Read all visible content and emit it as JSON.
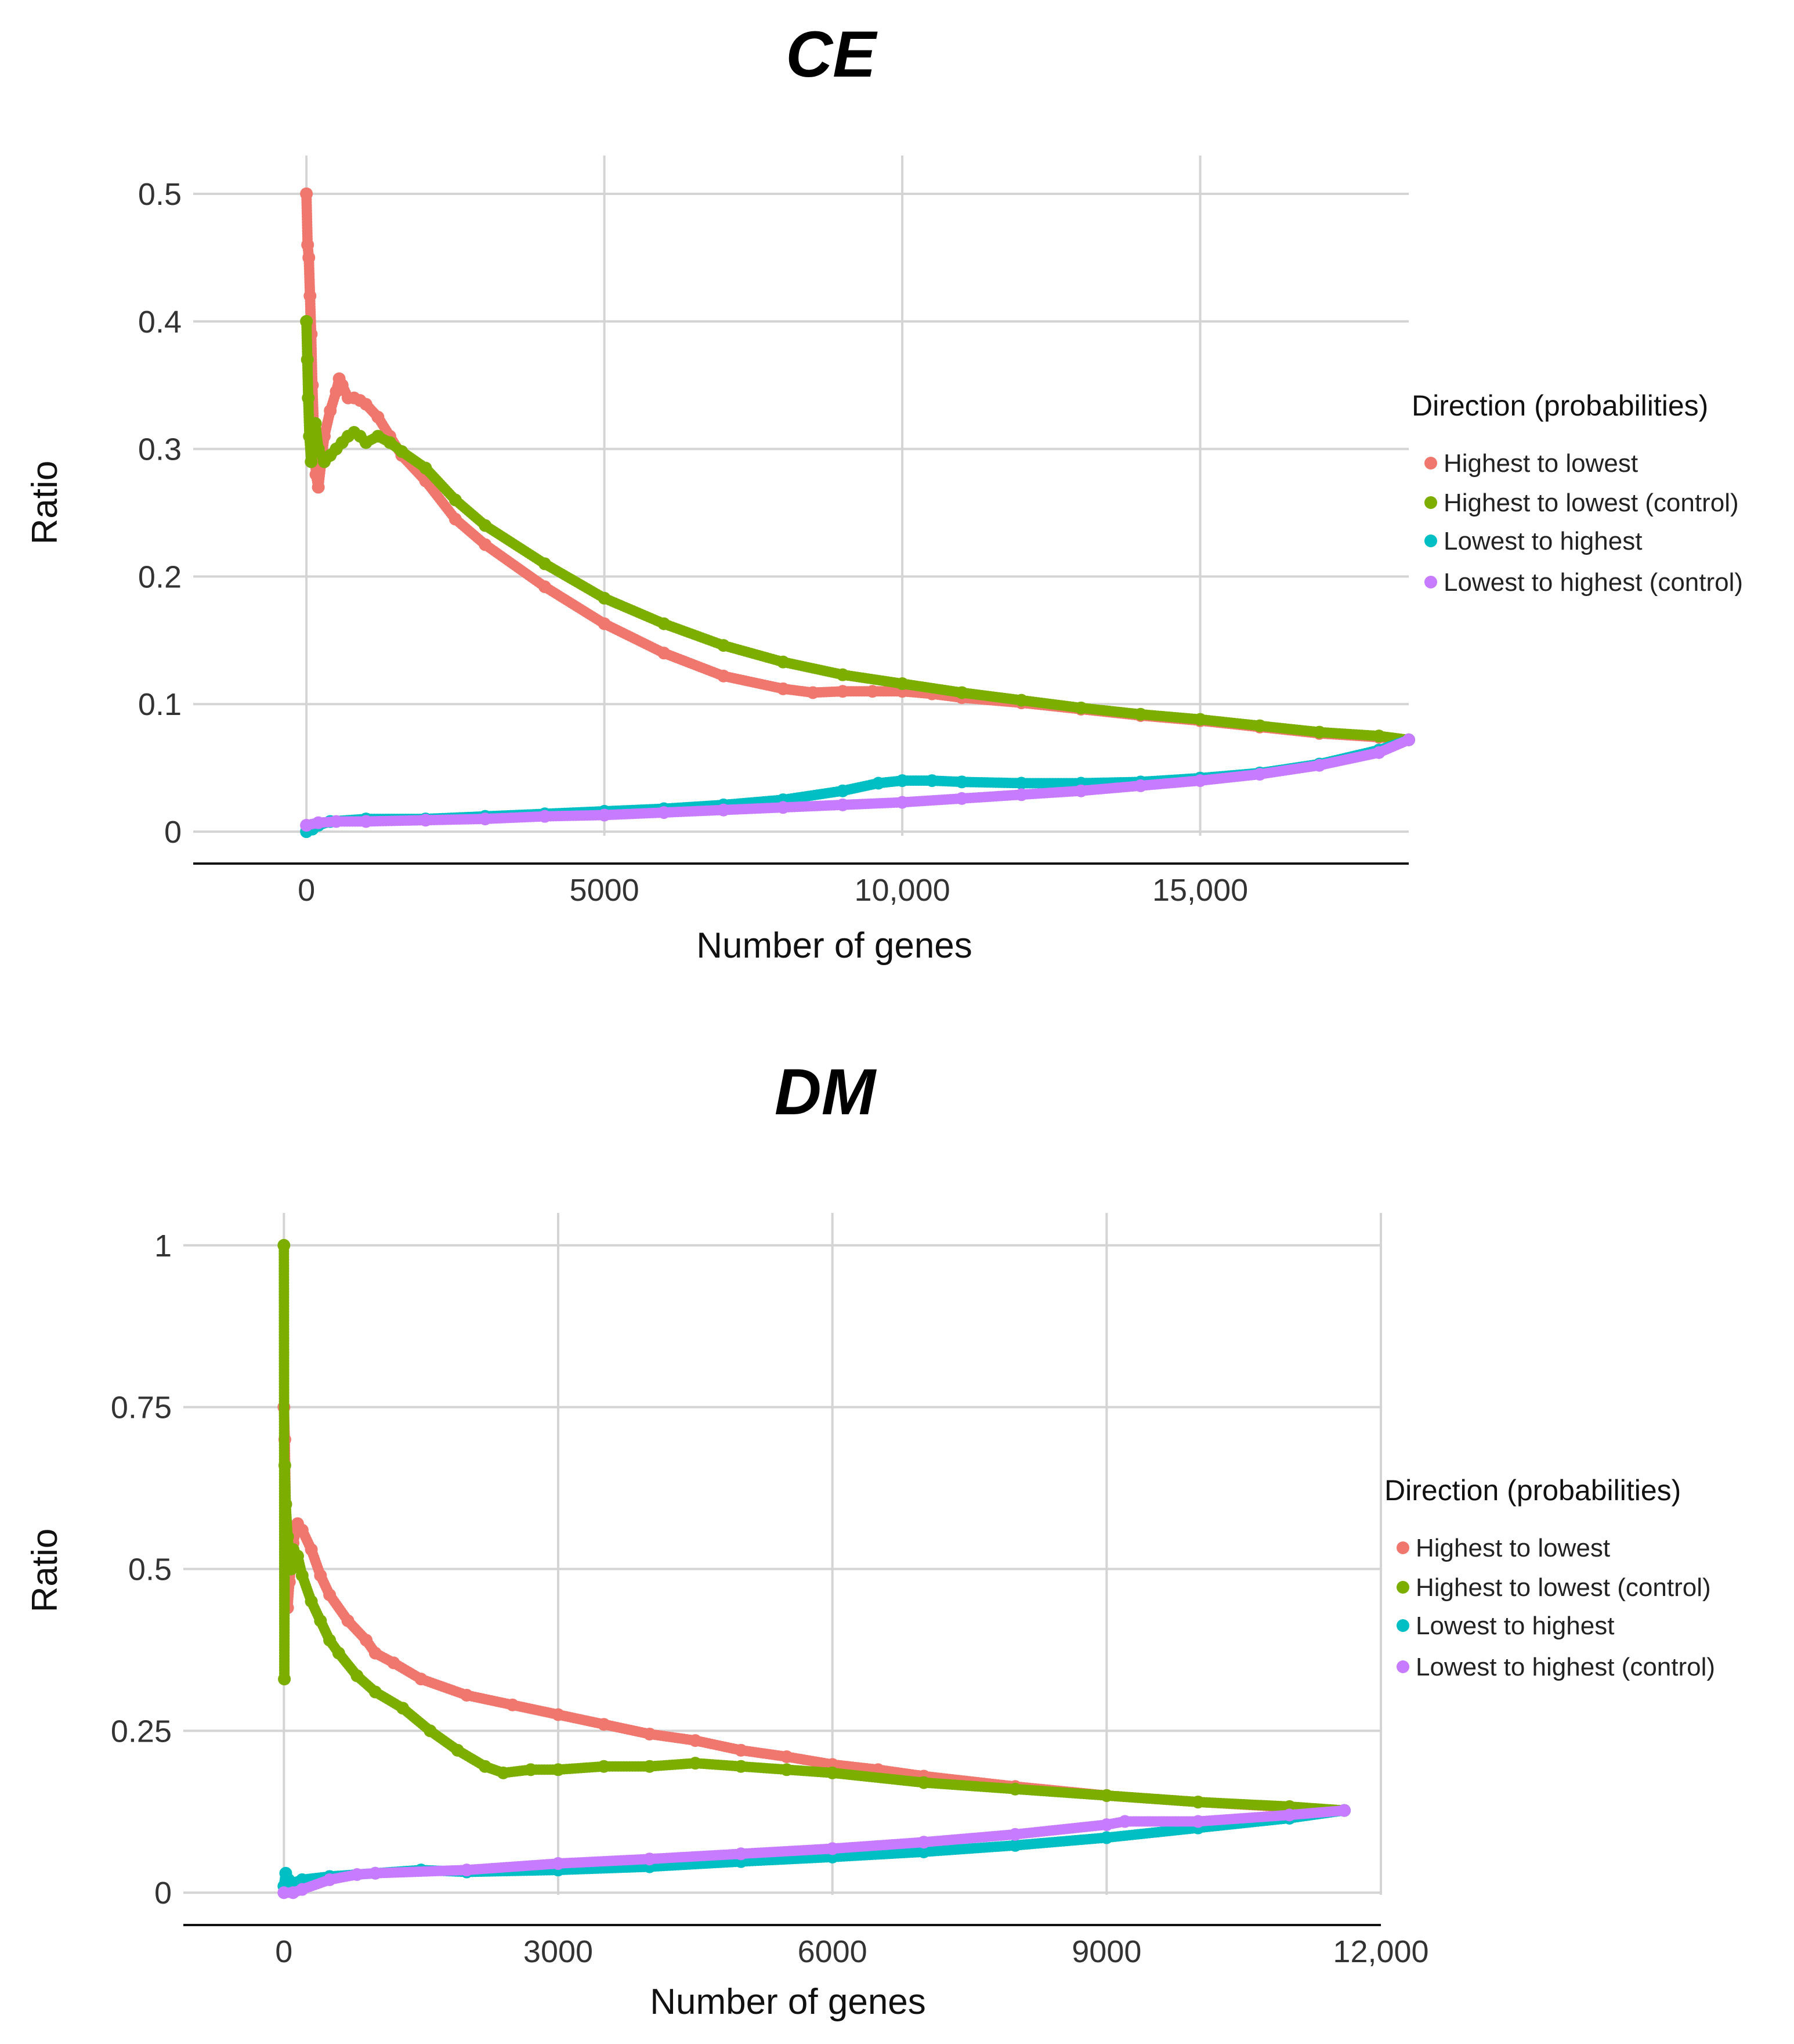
{
  "colors": {
    "highest_to_lowest": "#F0776D",
    "highest_to_lowest_control": "#7CAE00",
    "lowest_to_highest": "#00BFC4",
    "lowest_to_highest_control": "#C77CFF"
  },
  "chart_data": [
    {
      "type": "scatter",
      "title": "CE",
      "xlabel": "Number of genes",
      "ylabel": "Ratio",
      "xlim": [
        -1900,
        18500
      ],
      "ylim": [
        -0.025,
        0.53
      ],
      "x_ticks": [
        0,
        5000,
        10000,
        15000
      ],
      "x_tick_labels": [
        "0",
        "5000",
        "10,000",
        "15,000"
      ],
      "y_ticks": [
        0,
        0.1,
        0.2,
        0.3,
        0.4,
        0.5
      ],
      "y_tick_labels": [
        "0",
        "0.1",
        "0.2",
        "0.3",
        "0.4",
        "0.5"
      ],
      "legend": {
        "title": "Direction (probabilities)",
        "position": "right",
        "entries": [
          "Highest to lowest",
          "Highest to lowest (control)",
          "Lowest to highest",
          "Lowest to highest (control)"
        ]
      },
      "series": [
        {
          "name": "Highest to lowest",
          "color_key": "highest_to_lowest",
          "points": [
            [
              0,
              0.5
            ],
            [
              20,
              0.46
            ],
            [
              40,
              0.45
            ],
            [
              60,
              0.42
            ],
            [
              80,
              0.39
            ],
            [
              100,
              0.35
            ],
            [
              130,
              0.31
            ],
            [
              160,
              0.28
            ],
            [
              200,
              0.27
            ],
            [
              250,
              0.29
            ],
            [
              300,
              0.31
            ],
            [
              400,
              0.33
            ],
            [
              500,
              0.345
            ],
            [
              550,
              0.355
            ],
            [
              600,
              0.35
            ],
            [
              700,
              0.34
            ],
            [
              800,
              0.34
            ],
            [
              900,
              0.338
            ],
            [
              1000,
              0.335
            ],
            [
              1200,
              0.325
            ],
            [
              1400,
              0.31
            ],
            [
              1600,
              0.295
            ],
            [
              2000,
              0.275
            ],
            [
              2500,
              0.245
            ],
            [
              3000,
              0.225
            ],
            [
              4000,
              0.192
            ],
            [
              5000,
              0.163
            ],
            [
              6000,
              0.14
            ],
            [
              7000,
              0.122
            ],
            [
              8000,
              0.112
            ],
            [
              8500,
              0.109
            ],
            [
              9000,
              0.11
            ],
            [
              9500,
              0.11
            ],
            [
              10000,
              0.11
            ],
            [
              10500,
              0.108
            ],
            [
              11000,
              0.105
            ],
            [
              12000,
              0.101
            ],
            [
              13000,
              0.096
            ],
            [
              14000,
              0.091
            ],
            [
              15000,
              0.087
            ],
            [
              16000,
              0.082
            ],
            [
              17000,
              0.077
            ],
            [
              18000,
              0.074
            ],
            [
              18500,
              0.072
            ]
          ]
        },
        {
          "name": "Highest to lowest (control)",
          "color_key": "highest_to_lowest_control",
          "points": [
            [
              0,
              0.4
            ],
            [
              15,
              0.37
            ],
            [
              30,
              0.34
            ],
            [
              50,
              0.31
            ],
            [
              80,
              0.29
            ],
            [
              100,
              0.3
            ],
            [
              150,
              0.32
            ],
            [
              200,
              0.3
            ],
            [
              300,
              0.29
            ],
            [
              400,
              0.295
            ],
            [
              500,
              0.3
            ],
            [
              600,
              0.305
            ],
            [
              700,
              0.31
            ],
            [
              800,
              0.313
            ],
            [
              900,
              0.31
            ],
            [
              1000,
              0.305
            ],
            [
              1200,
              0.31
            ],
            [
              1400,
              0.305
            ],
            [
              1600,
              0.298
            ],
            [
              2000,
              0.285
            ],
            [
              2500,
              0.26
            ],
            [
              3000,
              0.24
            ],
            [
              4000,
              0.21
            ],
            [
              5000,
              0.183
            ],
            [
              6000,
              0.163
            ],
            [
              7000,
              0.146
            ],
            [
              8000,
              0.133
            ],
            [
              9000,
              0.123
            ],
            [
              10000,
              0.116
            ],
            [
              11000,
              0.109
            ],
            [
              12000,
              0.103
            ],
            [
              13000,
              0.097
            ],
            [
              14000,
              0.092
            ],
            [
              15000,
              0.088
            ],
            [
              16000,
              0.083
            ],
            [
              17000,
              0.078
            ],
            [
              18000,
              0.075
            ],
            [
              18500,
              0.072
            ]
          ]
        },
        {
          "name": "Lowest to highest",
          "color_key": "lowest_to_highest",
          "points": [
            [
              0,
              0.0
            ],
            [
              100,
              0.002
            ],
            [
              200,
              0.005
            ],
            [
              400,
              0.008
            ],
            [
              1000,
              0.01
            ],
            [
              2000,
              0.01
            ],
            [
              3000,
              0.012
            ],
            [
              4000,
              0.014
            ],
            [
              5000,
              0.016
            ],
            [
              6000,
              0.018
            ],
            [
              7000,
              0.021
            ],
            [
              8000,
              0.025
            ],
            [
              9000,
              0.032
            ],
            [
              9600,
              0.038
            ],
            [
              10000,
              0.04
            ],
            [
              10500,
              0.04
            ],
            [
              11000,
              0.039
            ],
            [
              12000,
              0.038
            ],
            [
              13000,
              0.038
            ],
            [
              14000,
              0.039
            ],
            [
              15000,
              0.042
            ],
            [
              16000,
              0.046
            ],
            [
              17000,
              0.053
            ],
            [
              18000,
              0.064
            ],
            [
              18500,
              0.072
            ]
          ]
        },
        {
          "name": "Lowest to highest (control)",
          "color_key": "lowest_to_highest_control",
          "points": [
            [
              0,
              0.005
            ],
            [
              200,
              0.007
            ],
            [
              500,
              0.008
            ],
            [
              1000,
              0.008
            ],
            [
              2000,
              0.009
            ],
            [
              3000,
              0.01
            ],
            [
              4000,
              0.012
            ],
            [
              5000,
              0.013
            ],
            [
              6000,
              0.015
            ],
            [
              7000,
              0.017
            ],
            [
              8000,
              0.019
            ],
            [
              9000,
              0.021
            ],
            [
              10000,
              0.023
            ],
            [
              11000,
              0.026
            ],
            [
              12000,
              0.029
            ],
            [
              13000,
              0.032
            ],
            [
              14000,
              0.036
            ],
            [
              15000,
              0.04
            ],
            [
              16000,
              0.045
            ],
            [
              17000,
              0.052
            ],
            [
              18000,
              0.062
            ],
            [
              18500,
              0.072
            ]
          ]
        }
      ]
    },
    {
      "type": "scatter",
      "title": "DM",
      "xlabel": "Number of genes",
      "ylabel": "Ratio",
      "xlim": [
        -1100,
        12000
      ],
      "ylim": [
        -0.05,
        1.05
      ],
      "x_ticks": [
        0,
        3000,
        6000,
        9000,
        12000
      ],
      "x_tick_labels": [
        "0",
        "3000",
        "6000",
        "9000",
        "12,000"
      ],
      "y_ticks": [
        0,
        0.25,
        0.5,
        0.75,
        1
      ],
      "y_tick_labels": [
        "0",
        "0.25",
        "0.5",
        "0.75",
        "1"
      ],
      "legend": {
        "title": "Direction (probabilities)",
        "position": "right",
        "entries": [
          "Highest to lowest",
          "Highest to lowest (control)",
          "Lowest to highest",
          "Lowest to highest (control)"
        ]
      },
      "series": [
        {
          "name": "Highest to lowest",
          "color_key": "highest_to_lowest",
          "points": [
            [
              0,
              0.75
            ],
            [
              10,
              0.7
            ],
            [
              20,
              0.6
            ],
            [
              30,
              0.5
            ],
            [
              40,
              0.44
            ],
            [
              60,
              0.48
            ],
            [
              100,
              0.54
            ],
            [
              150,
              0.57
            ],
            [
              200,
              0.56
            ],
            [
              300,
              0.53
            ],
            [
              400,
              0.49
            ],
            [
              500,
              0.46
            ],
            [
              700,
              0.42
            ],
            [
              900,
              0.39
            ],
            [
              1000,
              0.37
            ],
            [
              1200,
              0.355
            ],
            [
              1500,
              0.33
            ],
            [
              2000,
              0.305
            ],
            [
              2500,
              0.29
            ],
            [
              3000,
              0.275
            ],
            [
              3500,
              0.26
            ],
            [
              4000,
              0.245
            ],
            [
              4500,
              0.235
            ],
            [
              5000,
              0.22
            ],
            [
              5500,
              0.21
            ],
            [
              6000,
              0.198
            ],
            [
              6500,
              0.19
            ],
            [
              7000,
              0.18
            ],
            [
              8000,
              0.164
            ],
            [
              9000,
              0.15
            ],
            [
              10000,
              0.14
            ],
            [
              11000,
              0.132
            ],
            [
              11600,
              0.127
            ]
          ]
        },
        {
          "name": "Highest to lowest (control)",
          "color_key": "highest_to_lowest_control",
          "points": [
            [
              0,
              1.0
            ],
            [
              5,
              0.33
            ],
            [
              10,
              0.66
            ],
            [
              20,
              0.6
            ],
            [
              40,
              0.55
            ],
            [
              60,
              0.52
            ],
            [
              80,
              0.5
            ],
            [
              100,
              0.53
            ],
            [
              150,
              0.52
            ],
            [
              200,
              0.49
            ],
            [
              300,
              0.45
            ],
            [
              400,
              0.42
            ],
            [
              500,
              0.39
            ],
            [
              600,
              0.37
            ],
            [
              800,
              0.335
            ],
            [
              1000,
              0.31
            ],
            [
              1300,
              0.285
            ],
            [
              1600,
              0.25
            ],
            [
              1900,
              0.22
            ],
            [
              2200,
              0.195
            ],
            [
              2400,
              0.185
            ],
            [
              2700,
              0.19
            ],
            [
              3000,
              0.19
            ],
            [
              3500,
              0.195
            ],
            [
              4000,
              0.195
            ],
            [
              4500,
              0.2
            ],
            [
              5000,
              0.195
            ],
            [
              5500,
              0.19
            ],
            [
              6000,
              0.185
            ],
            [
              7000,
              0.17
            ],
            [
              8000,
              0.16
            ],
            [
              9000,
              0.15
            ],
            [
              10000,
              0.14
            ],
            [
              11000,
              0.133
            ],
            [
              11600,
              0.127
            ]
          ]
        },
        {
          "name": "Lowest to highest",
          "color_key": "lowest_to_highest",
          "points": [
            [
              0,
              0.01
            ],
            [
              20,
              0.03
            ],
            [
              50,
              0.02
            ],
            [
              100,
              0.015
            ],
            [
              200,
              0.02
            ],
            [
              500,
              0.025
            ],
            [
              1000,
              0.03
            ],
            [
              1500,
              0.035
            ],
            [
              2000,
              0.032
            ],
            [
              3000,
              0.035
            ],
            [
              4000,
              0.04
            ],
            [
              5000,
              0.048
            ],
            [
              6000,
              0.055
            ],
            [
              7000,
              0.063
            ],
            [
              8000,
              0.073
            ],
            [
              9000,
              0.085
            ],
            [
              10000,
              0.1
            ],
            [
              11000,
              0.115
            ],
            [
              11600,
              0.127
            ]
          ]
        },
        {
          "name": "Lowest to highest (control)",
          "color_key": "lowest_to_highest_control",
          "points": [
            [
              0,
              0.0
            ],
            [
              100,
              0.0
            ],
            [
              200,
              0.005
            ],
            [
              500,
              0.02
            ],
            [
              800,
              0.028
            ],
            [
              1000,
              0.03
            ],
            [
              2000,
              0.035
            ],
            [
              3000,
              0.045
            ],
            [
              4000,
              0.052
            ],
            [
              5000,
              0.06
            ],
            [
              6000,
              0.068
            ],
            [
              7000,
              0.078
            ],
            [
              8000,
              0.09
            ],
            [
              9000,
              0.105
            ],
            [
              9200,
              0.11
            ],
            [
              10000,
              0.11
            ],
            [
              11000,
              0.12
            ],
            [
              11600,
              0.127
            ]
          ]
        }
      ]
    }
  ]
}
